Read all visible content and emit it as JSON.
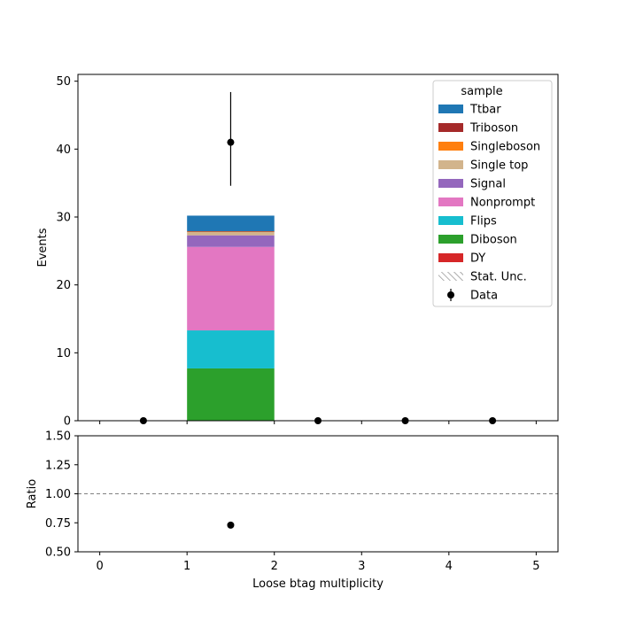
{
  "chart_data": [
    {
      "type": "bar",
      "stacked": true,
      "panel": "main",
      "ylabel": "Events",
      "ylim": [
        0,
        51
      ],
      "yticks": [
        0,
        10,
        20,
        30,
        40,
        50
      ],
      "xlim": [
        -0.25,
        5.25
      ],
      "bins": [
        [
          0,
          1
        ],
        [
          1,
          2
        ],
        [
          2,
          3
        ],
        [
          3,
          4
        ],
        [
          4,
          5
        ]
      ],
      "series": [
        {
          "name": "DY",
          "color": "#d62728",
          "values": [
            0,
            0.0,
            0,
            0,
            0
          ]
        },
        {
          "name": "Diboson",
          "color": "#2ca02c",
          "values": [
            0,
            7.7,
            0,
            0,
            0
          ]
        },
        {
          "name": "Flips",
          "color": "#17becf",
          "values": [
            0,
            5.6,
            0,
            0,
            0
          ]
        },
        {
          "name": "Nonprompt",
          "color": "#e377c2",
          "values": [
            0,
            12.3,
            0,
            0,
            0
          ]
        },
        {
          "name": "Signal",
          "color": "#9467bd",
          "values": [
            0,
            1.7,
            0,
            0,
            0
          ]
        },
        {
          "name": "Single top",
          "color": "#d2b48c",
          "values": [
            0,
            0.5,
            0,
            0,
            0
          ]
        },
        {
          "name": "Singleboson",
          "color": "#ff7f0e",
          "values": [
            0,
            0.05,
            0,
            0,
            0
          ]
        },
        {
          "name": "Triboson",
          "color": "#a52a2a",
          "values": [
            0,
            0.05,
            0,
            0,
            0
          ]
        },
        {
          "name": "Ttbar",
          "color": "#1f77b4",
          "values": [
            0,
            2.3,
            0,
            0,
            0
          ]
        }
      ],
      "data_points": {
        "name": "Data",
        "x": [
          0.5,
          1.5,
          2.5,
          3.5,
          4.5
        ],
        "y": [
          0,
          41,
          0,
          0,
          0
        ],
        "yerr_low": [
          0,
          6.4,
          0,
          0,
          0
        ],
        "yerr_high": [
          0,
          7.4,
          0,
          0,
          0
        ]
      },
      "legend": {
        "title": "sample",
        "placement": "top-right",
        "entries": [
          "Ttbar",
          "Triboson",
          "Singleboson",
          "Single top",
          "Signal",
          "Nonprompt",
          "Flips",
          "Diboson",
          "DY",
          "Stat. Unc.",
          "Data"
        ]
      },
      "grid": false
    },
    {
      "type": "scatter",
      "panel": "ratio",
      "xlabel": "Loose btag multiplicity",
      "ylabel": "Ratio",
      "ylim": [
        0.5,
        1.5
      ],
      "yticks": [
        "0.50",
        "0.75",
        "1.00",
        "1.25",
        "1.50"
      ],
      "xticks": [
        "0",
        "1",
        "2",
        "3",
        "4",
        "5"
      ],
      "xlim": [
        -0.25,
        5.25
      ],
      "reference_line": 1.0,
      "points": {
        "x": [
          1.5
        ],
        "y": [
          0.73
        ]
      },
      "grid": false
    }
  ]
}
